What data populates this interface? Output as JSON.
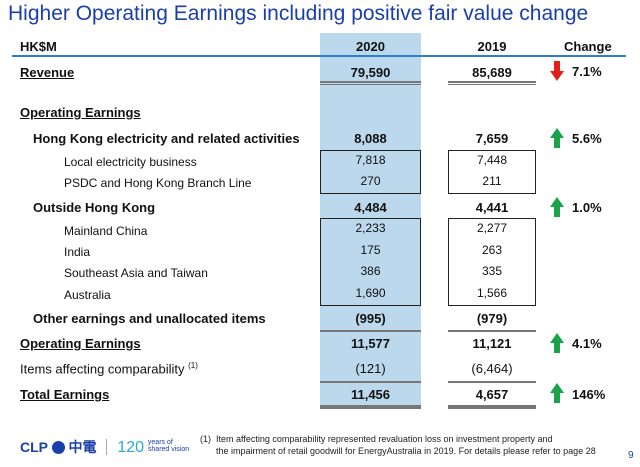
{
  "title": "Higher Operating Earnings including positive fair value change",
  "header": {
    "unit": "HK$M",
    "col_2020": "2020",
    "col_2019": "2019",
    "col_change": "Change"
  },
  "rows": [
    {
      "label": "Revenue",
      "v2020": "79,590",
      "v2019": "85,689",
      "change": "7.1%",
      "direction": "down"
    },
    {
      "label": "Operating Earnings"
    },
    {
      "label": "Hong Kong electricity and related activities",
      "v2020": "8,088",
      "v2019": "7,659",
      "change": "5.6%",
      "direction": "up"
    },
    {
      "label": "Local electricity business",
      "v2020": "7,818",
      "v2019": "7,448"
    },
    {
      "label": "PSDC and Hong Kong Branch Line",
      "v2020": "270",
      "v2019": "211"
    },
    {
      "label": "Outside Hong Kong",
      "v2020": "4,484",
      "v2019": "4,441",
      "change": "1.0%",
      "direction": "up"
    },
    {
      "label": "Mainland China",
      "v2020": "2,233",
      "v2019": "2,277"
    },
    {
      "label": "India",
      "v2020": "175",
      "v2019": "263"
    },
    {
      "label": "Southeast Asia and Taiwan",
      "v2020": "386",
      "v2019": "335"
    },
    {
      "label": "Australia",
      "v2020": "1,690",
      "v2019": "1,566"
    },
    {
      "label": "Other earnings and unallocated items",
      "v2020": "(995)",
      "v2019": "(979)"
    },
    {
      "label": "Operating Earnings",
      "v2020": "11,577",
      "v2019": "11,121",
      "change": "4.1%",
      "direction": "up"
    },
    {
      "label": "Items affecting comparability",
      "sup": "(1)",
      "v2020": "(121)",
      "v2019": "(6,464)"
    },
    {
      "label": "Total Earnings",
      "v2020": "11,456",
      "v2019": "4,657",
      "change": "146%",
      "direction": "up"
    }
  ],
  "colors": {
    "title": "#1a3fa8",
    "highlight_column": "#bcd8ec",
    "up_arrow": "#1aa34a",
    "down_arrow": "#e0201b"
  },
  "footnote": {
    "marker": "(1)",
    "line1": "Item affecting comparability represented revaluation loss on investment property and",
    "line2": "the impairment of retail goodwill for EnergyAustralia in 2019. For details please refer to page 28"
  },
  "logo": {
    "brand": "CLP",
    "chinese": "中電",
    "anniversary": "120",
    "tagline": "years of shared vision"
  },
  "page_number": "9"
}
